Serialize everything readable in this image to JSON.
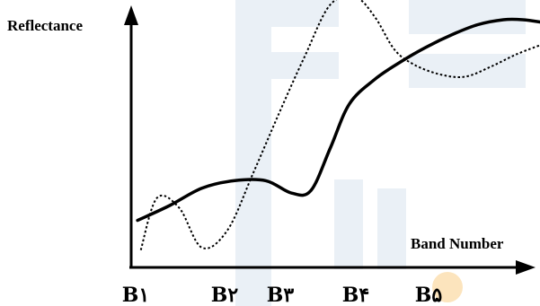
{
  "chart_data": {
    "type": "line",
    "xlabel": "Band Number",
    "ylabel": "Reflectance",
    "categories": [
      "B١",
      "B۲",
      "B۳",
      "B۴",
      "B۵"
    ],
    "xlim": [
      0.2,
      6.5
    ],
    "ylim": [
      0,
      10
    ],
    "grid": false,
    "legend": "none",
    "series": [
      {
        "style": "solid",
        "color": "#000000",
        "x": [
          0.3,
          0.8,
          1.3,
          1.8,
          2.3,
          2.7,
          3.0,
          3.3,
          3.6,
          4.0,
          4.4,
          4.8,
          5.2,
          5.6,
          6.0,
          6.3,
          6.6
        ],
        "y": [
          1.9,
          2.5,
          3.2,
          3.5,
          3.5,
          3.0,
          3.1,
          4.8,
          6.6,
          7.6,
          8.3,
          8.9,
          9.4,
          9.8,
          10.0,
          10.0,
          9.9
        ]
      },
      {
        "style": "dotted",
        "color": "#000000",
        "x": [
          0.35,
          0.6,
          0.95,
          1.3,
          1.7,
          2.1,
          2.5,
          2.9,
          3.3,
          3.7,
          4.0,
          4.3,
          4.6,
          5.0,
          5.4,
          5.8,
          6.2,
          6.6
        ],
        "y": [
          0.7,
          2.8,
          2.4,
          0.8,
          1.5,
          3.8,
          6.2,
          8.5,
          10.6,
          10.9,
          10.1,
          8.8,
          8.2,
          7.8,
          7.7,
          8.1,
          8.6,
          9.0
        ]
      }
    ]
  }
}
